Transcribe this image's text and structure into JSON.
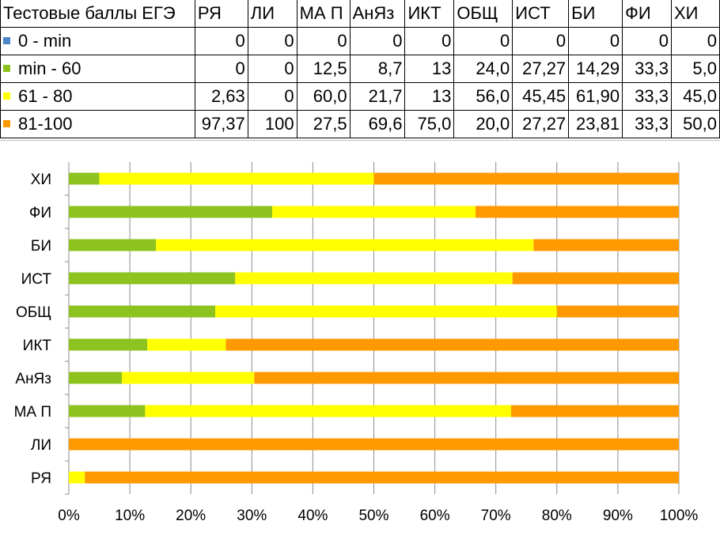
{
  "table": {
    "corner_label": "Тестовые баллы ЕГЭ",
    "columns": [
      "РЯ",
      "ЛИ",
      "МА П",
      "АнЯз",
      "ИКТ",
      "ОБЩ",
      "ИСТ",
      "БИ",
      "ФИ",
      "ХИ"
    ],
    "rows": [
      {
        "label": "0 - min",
        "color": "#4a86c8",
        "cells": [
          "0",
          "0",
          "0",
          "0",
          "0",
          "0",
          "0",
          "0",
          "0",
          "0"
        ]
      },
      {
        "label": "min - 60",
        "color": "#8dc21f",
        "cells": [
          "0",
          "0",
          "12,5",
          "8,7",
          "13",
          "24,0",
          "27,27",
          "14,29",
          "33,3",
          "5,0"
        ]
      },
      {
        "label": "61 - 80",
        "color": "#ffff00",
        "cells": [
          "2,63",
          "0",
          "60,0",
          "21,7",
          "13",
          "56,0",
          "45,45",
          "61,90",
          "33,3",
          "45,0"
        ]
      },
      {
        "label": "81-100",
        "color": "#ff9900",
        "cells": [
          "97,37",
          "100",
          "27,5",
          "69,6",
          "75,0",
          "20,0",
          "27,27",
          "23,81",
          "33,3",
          "50,0"
        ]
      }
    ]
  },
  "chart_data": {
    "type": "bar",
    "orientation": "horizontal",
    "stacked": "percent",
    "categories": [
      "РЯ",
      "ЛИ",
      "МА П",
      "АнЯз",
      "ИКТ",
      "ОБЩ",
      "ИСТ",
      "БИ",
      "ФИ",
      "ХИ"
    ],
    "series": [
      {
        "name": "0 - min",
        "color": "#4a86c8",
        "values": [
          0,
          0,
          0,
          0,
          0,
          0,
          0,
          0,
          0,
          0
        ]
      },
      {
        "name": "min - 60",
        "color": "#8dc21f",
        "values": [
          0,
          0,
          12.5,
          8.7,
          13,
          24.0,
          27.27,
          14.29,
          33.3,
          5.0
        ]
      },
      {
        "name": "61 - 80",
        "color": "#ffff00",
        "values": [
          2.63,
          0,
          60.0,
          21.7,
          13,
          56.0,
          45.45,
          61.9,
          33.3,
          45.0
        ]
      },
      {
        "name": "81-100",
        "color": "#ff9900",
        "values": [
          97.37,
          100,
          27.5,
          69.6,
          75.0,
          20.0,
          27.27,
          23.81,
          33.3,
          50.0
        ]
      }
    ],
    "x_ticks": [
      "0%",
      "10%",
      "20%",
      "30%",
      "40%",
      "50%",
      "60%",
      "70%",
      "80%",
      "90%",
      "100%"
    ],
    "xlim": [
      0,
      100
    ],
    "grid": "vertical",
    "legend": "in table"
  }
}
